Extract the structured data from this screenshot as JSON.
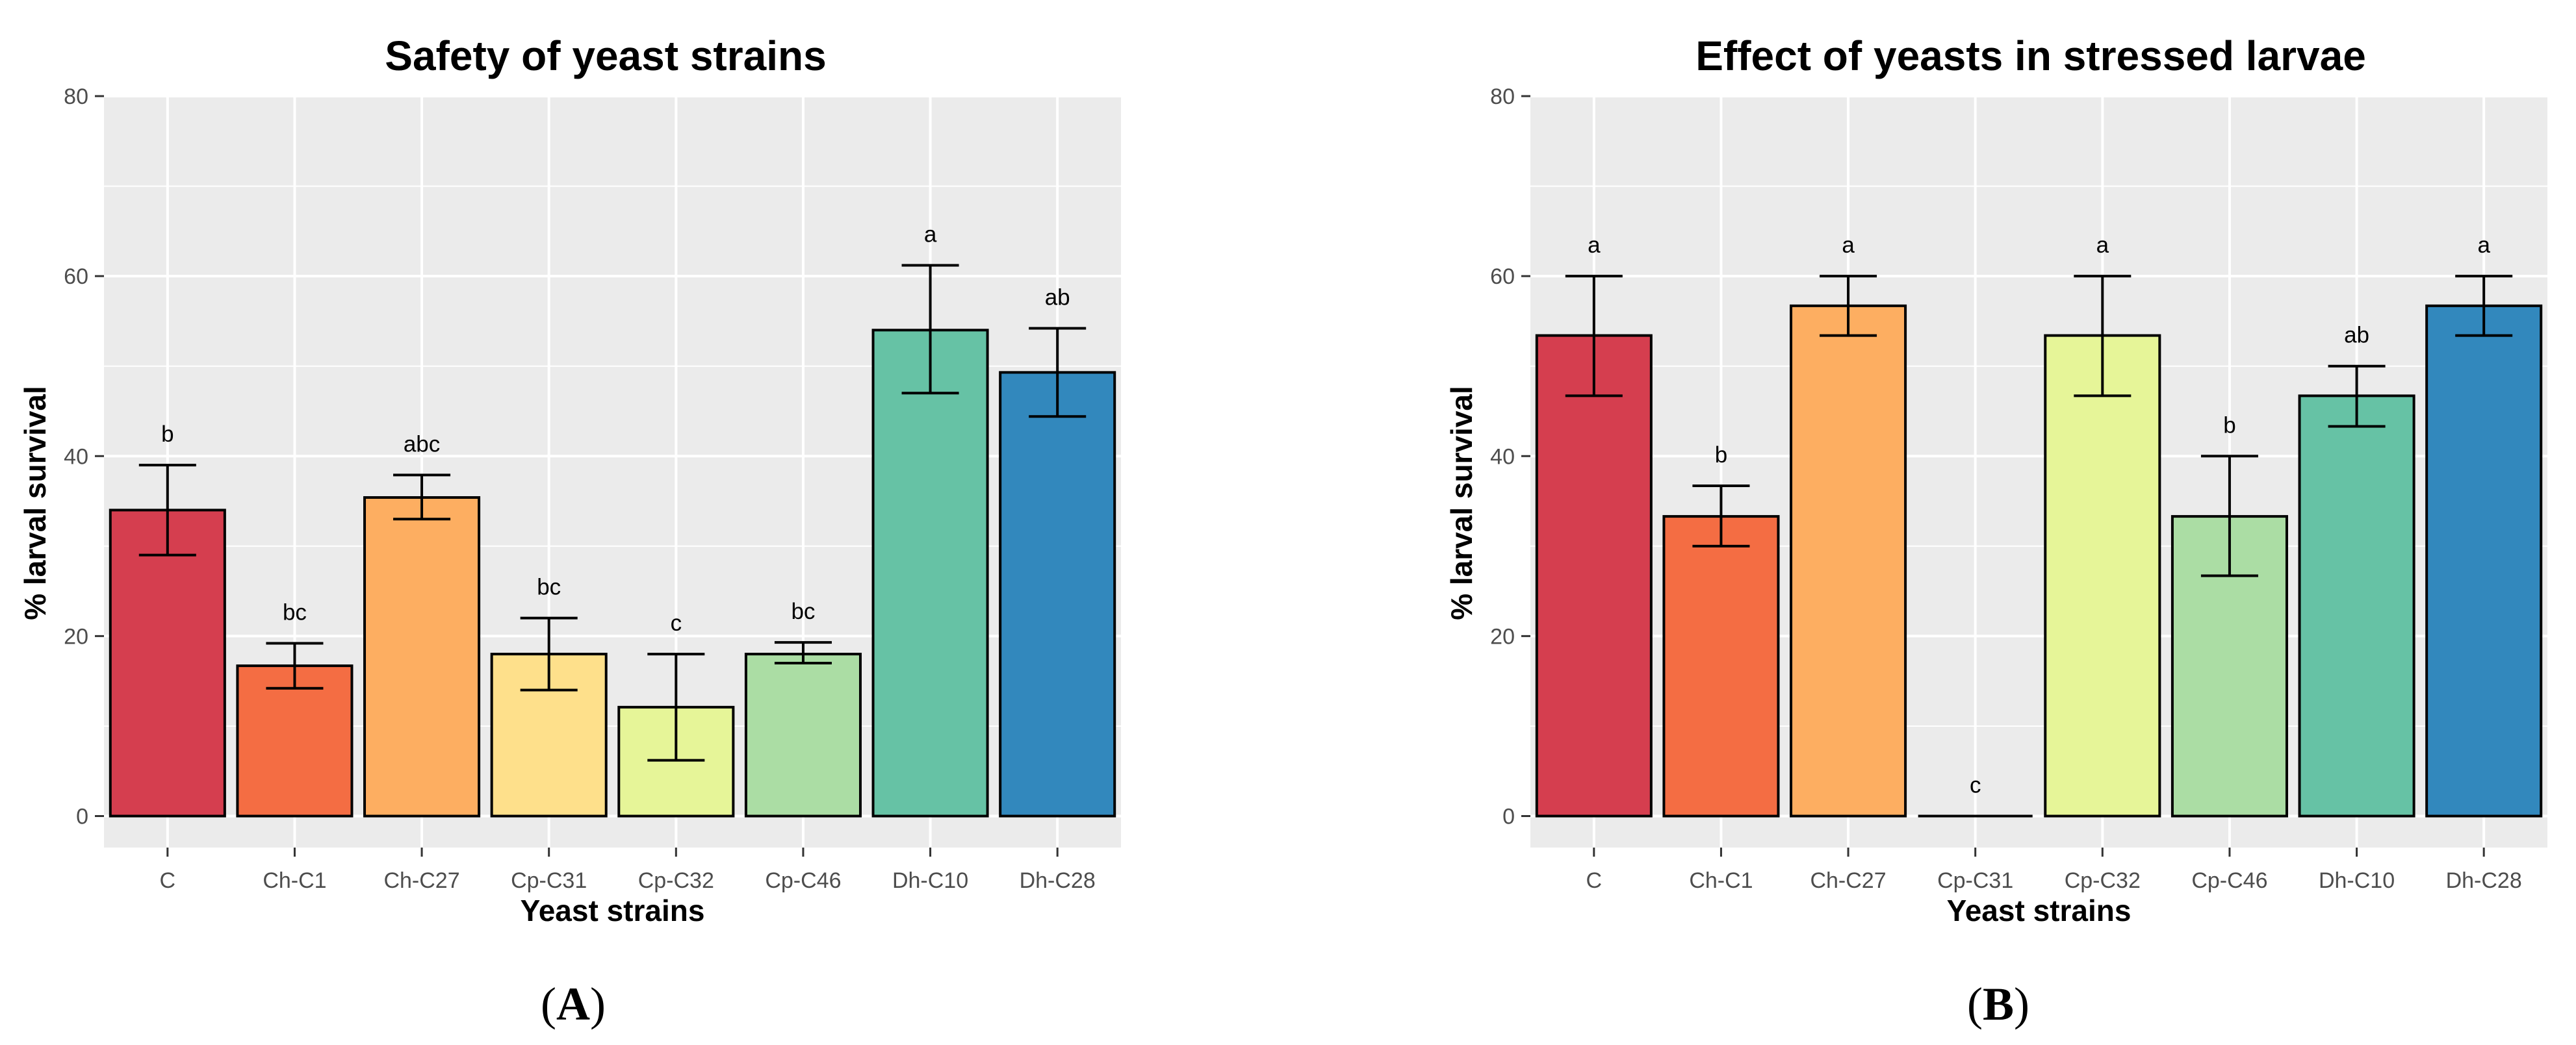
{
  "chart_data": [
    {
      "type": "bar",
      "panel_label": "A",
      "title": "Safety of yeast strains",
      "xlabel": "Yeast strains",
      "ylabel": "% larval survival",
      "ylim": [
        -3.5,
        80
      ],
      "yticks": [
        0,
        20,
        40,
        60,
        80
      ],
      "grid": true,
      "categories": [
        "C",
        "Ch-C1",
        "Ch-C27",
        "Cp-C31",
        "Cp-C32",
        "Cp-C46",
        "Dh-C10",
        "Dh-C28"
      ],
      "values": [
        34,
        16.7,
        35.4,
        18,
        12.1,
        18,
        54,
        49.3
      ],
      "error_low": [
        29,
        14.2,
        33,
        14,
        6.2,
        17,
        47,
        44.4
      ],
      "error_high": [
        39,
        19.2,
        37.9,
        22,
        18,
        19.3,
        61.2,
        54.2
      ],
      "letters": [
        "b",
        "bc",
        "abc",
        "bc",
        "c",
        "bc",
        "a",
        "ab"
      ],
      "colors": [
        "#d53e4f",
        "#f46d43",
        "#fdae61",
        "#fee08b",
        "#e6f598",
        "#abdda4",
        "#66c2a5",
        "#3288bd"
      ]
    },
    {
      "type": "bar",
      "panel_label": "B",
      "title": "Effect of yeasts in stressed larvae",
      "xlabel": "Yeast strains",
      "ylabel": "% larval survival",
      "ylim": [
        -3.5,
        80
      ],
      "yticks": [
        0,
        20,
        40,
        60,
        80
      ],
      "grid": true,
      "categories": [
        "C",
        "Ch-C1",
        "Ch-C27",
        "Cp-C31",
        "Cp-C32",
        "Cp-C46",
        "Dh-C10",
        "Dh-C28"
      ],
      "values": [
        53.4,
        33.3,
        56.7,
        0,
        53.4,
        33.3,
        46.7,
        56.7
      ],
      "error_low": [
        46.7,
        30,
        53.4,
        0,
        46.7,
        26.7,
        43.3,
        53.4
      ],
      "error_high": [
        60,
        36.7,
        60,
        0,
        60,
        40,
        50,
        60
      ],
      "letters": [
        "a",
        "b",
        "a",
        "c",
        "a",
        "b",
        "ab",
        "a"
      ],
      "colors": [
        "#d53e4f",
        "#f46d43",
        "#fdae61",
        "#fee08b",
        "#e6f598",
        "#abdda4",
        "#66c2a5",
        "#3288bd"
      ]
    }
  ]
}
